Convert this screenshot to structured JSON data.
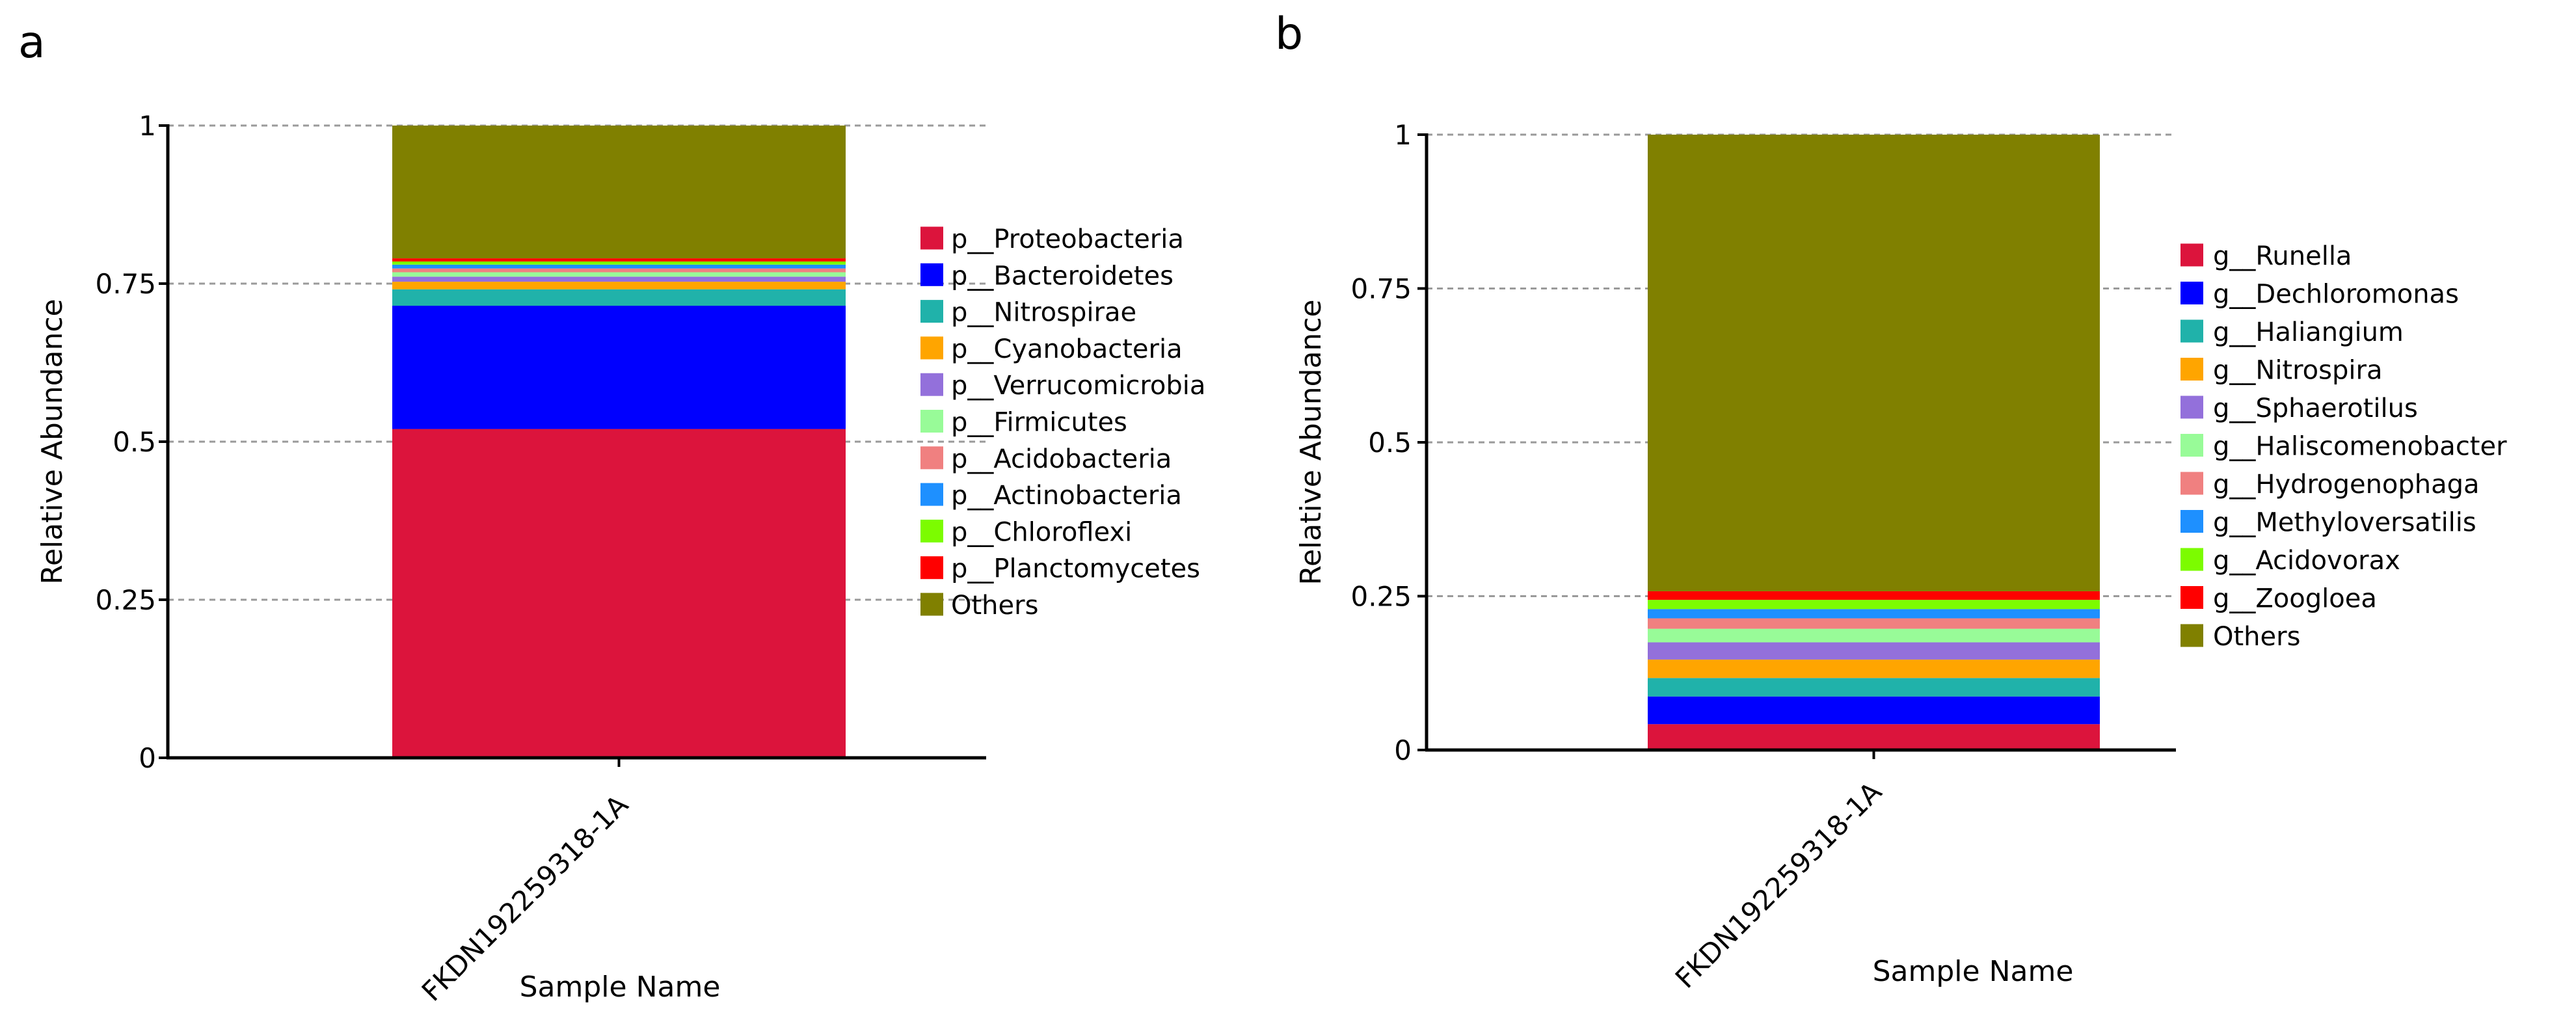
{
  "chart_data": [
    {
      "panel_label": "a",
      "type": "bar",
      "stacked": true,
      "categories": [
        "FKDN192259318-1A"
      ],
      "xlabel": "Sample Name",
      "ylabel": "Relative Abundance",
      "ylim": [
        0,
        1
      ],
      "yticks": [
        0,
        0.25,
        0.5,
        0.75,
        1
      ],
      "ytick_labels": [
        "0",
        "0.25",
        "0.5",
        "0.75",
        "1"
      ],
      "grid": "dashed-horizontal",
      "legend_position": "right",
      "series": [
        {
          "name": "p__Proteobacteria",
          "color": "#DC143C",
          "values": [
            0.52
          ]
        },
        {
          "name": "p__Bacteroidetes",
          "color": "#0000FF",
          "values": [
            0.195
          ]
        },
        {
          "name": "p__Nitrospirae",
          "color": "#20B2AA",
          "values": [
            0.026
          ]
        },
        {
          "name": "p__Cyanobacteria",
          "color": "#FFA500",
          "values": [
            0.012
          ]
        },
        {
          "name": "p__Verrucomicrobia",
          "color": "#9370DB",
          "values": [
            0.008
          ]
        },
        {
          "name": "p__Firmicutes",
          "color": "#98FB98",
          "values": [
            0.007
          ]
        },
        {
          "name": "p__Acidobacteria",
          "color": "#F08080",
          "values": [
            0.006
          ]
        },
        {
          "name": "p__Actinobacteria",
          "color": "#1E90FF",
          "values": [
            0.006
          ]
        },
        {
          "name": "p__Chloroflexi",
          "color": "#7CFC00",
          "values": [
            0.005
          ]
        },
        {
          "name": "p__Planctomycetes",
          "color": "#FF0000",
          "values": [
            0.005
          ]
        },
        {
          "name": "Others",
          "color": "#808000",
          "values": [
            0.21
          ]
        }
      ]
    },
    {
      "panel_label": "b",
      "type": "bar",
      "stacked": true,
      "categories": [
        "FKDN192259318-1A"
      ],
      "xlabel": "Sample Name",
      "ylabel": "Relative Abundance",
      "ylim": [
        0,
        1
      ],
      "yticks": [
        0,
        0.25,
        0.5,
        0.75,
        1
      ],
      "ytick_labels": [
        "0",
        "0.25",
        "0.5",
        "0.75",
        "1"
      ],
      "grid": "dashed-horizontal",
      "legend_position": "right",
      "series": [
        {
          "name": "g__Runella",
          "color": "#DC143C",
          "values": [
            0.042
          ]
        },
        {
          "name": "g__Dechloromonas",
          "color": "#0000FF",
          "values": [
            0.045
          ]
        },
        {
          "name": "g__Haliangium",
          "color": "#20B2AA",
          "values": [
            0.03
          ]
        },
        {
          "name": "g__Nitrospira",
          "color": "#FFA500",
          "values": [
            0.03
          ]
        },
        {
          "name": "g__Sphaerotilus",
          "color": "#9370DB",
          "values": [
            0.028
          ]
        },
        {
          "name": "g__Haliscomenobacter",
          "color": "#98FB98",
          "values": [
            0.022
          ]
        },
        {
          "name": "g__Hydrogenophaga",
          "color": "#F08080",
          "values": [
            0.017
          ]
        },
        {
          "name": "g__Methyloversatilis",
          "color": "#1E90FF",
          "values": [
            0.015
          ]
        },
        {
          "name": "g__Acidovorax",
          "color": "#7CFC00",
          "values": [
            0.015
          ]
        },
        {
          "name": "g__Zoogloea",
          "color": "#FF0000",
          "values": [
            0.014
          ]
        },
        {
          "name": "Others",
          "color": "#808000",
          "values": [
            0.742
          ]
        }
      ]
    }
  ]
}
